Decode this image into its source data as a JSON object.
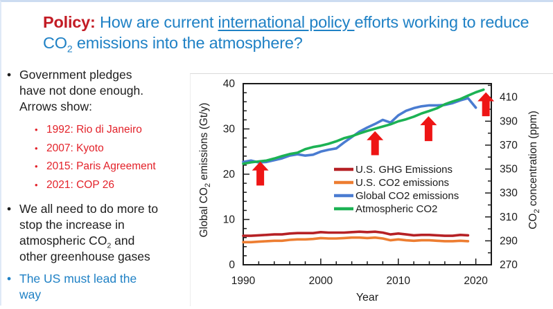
{
  "slide": {
    "bullet_char": "•",
    "colors": {
      "title_blue": "#1f81c5",
      "text_red": "#c31c25",
      "sub_red": "#e32129",
      "arrow_red": "#ee1515",
      "border_blue": "#ccdcf1"
    },
    "title": {
      "prefix": "Policy:",
      "seg1": " How are current ",
      "underlined": "international policy ",
      "seg2": "efforts working to reduce CO",
      "subscript": "2",
      "seg3": " emissions into the atmosphere?"
    },
    "bullets": {
      "b1": {
        "text": "Government pledges have not done enough. Arrows show:"
      },
      "sub": [
        "1992: Rio di Janeiro",
        "2007: Kyoto",
        "2015: Paris Agreement",
        "2021: COP 26"
      ],
      "b2": {
        "pre": "We all need to do more to stop the increase in atmospheric CO",
        "sub": "2",
        "post": " and other greenhouse gases"
      },
      "b3": {
        "text": "The US must lead the way"
      }
    }
  },
  "chart_data": {
    "type": "line",
    "title": "",
    "xlabel": "Year",
    "ylabel_left": {
      "pre": "Global CO",
      "sub": "2",
      "post": " emissions (Gt/y)"
    },
    "ylabel_right": {
      "pre": "CO",
      "sub": "2",
      "post": " concentration (ppm)"
    },
    "x_range": [
      1990,
      2022
    ],
    "x_major_ticks": [
      1990,
      2000,
      2010,
      2020
    ],
    "x_minor_step": 2,
    "y_left": {
      "range": [
        0,
        40
      ],
      "major_ticks": [
        0,
        10,
        20,
        30,
        40
      ],
      "minor_step": 2
    },
    "y_right": {
      "range": [
        270,
        421.4
      ],
      "major_ticks": [
        270,
        290,
        310,
        330,
        350,
        370,
        390,
        410
      ],
      "minor_step": 10
    },
    "grid": false,
    "legend_position": "inside-center",
    "series": [
      {
        "name": "U.S. GHG Emissions",
        "color": "#b62125",
        "axis": "left",
        "x_start": 1990,
        "values": [
          6.4,
          6.4,
          6.5,
          6.6,
          6.7,
          6.7,
          6.9,
          7.0,
          7.0,
          7.0,
          7.2,
          7.1,
          7.1,
          7.1,
          7.2,
          7.3,
          7.2,
          7.3,
          7.1,
          6.7,
          6.9,
          6.7,
          6.5,
          6.6,
          6.6,
          6.5,
          6.4,
          6.4,
          6.6,
          6.5
        ]
      },
      {
        "name": "U.S. CO2 emissions",
        "color": "#ed7d31",
        "axis": "left",
        "x_start": 1990,
        "values": [
          5.0,
          5.0,
          5.1,
          5.2,
          5.3,
          5.3,
          5.5,
          5.6,
          5.6,
          5.7,
          5.9,
          5.8,
          5.8,
          5.9,
          6.0,
          6.0,
          5.9,
          6.0,
          5.8,
          5.4,
          5.6,
          5.4,
          5.3,
          5.4,
          5.4,
          5.3,
          5.2,
          5.2,
          5.3,
          5.2
        ]
      },
      {
        "name": "Global CO2 emissions",
        "color": "#4a7cd1",
        "axis": "left",
        "x_start": 1990,
        "values": [
          22.7,
          23.0,
          22.6,
          22.7,
          23.1,
          23.5,
          24.1,
          24.4,
          24.1,
          24.3,
          25.0,
          25.4,
          25.7,
          27.0,
          28.2,
          29.4,
          30.3,
          31.1,
          32.0,
          31.4,
          33.0,
          34.0,
          34.6,
          35.0,
          35.2,
          35.2,
          35.3,
          35.7,
          36.3,
          36.8,
          34.7
        ]
      },
      {
        "name": "Atmospheric CO2",
        "color": "#1cb254",
        "axis": "right",
        "x_start": 1990,
        "values": [
          354.4,
          355.6,
          356.4,
          357.1,
          358.8,
          360.8,
          362.6,
          363.7,
          366.7,
          368.4,
          369.5,
          371.1,
          373.2,
          375.8,
          377.5,
          379.8,
          381.9,
          383.8,
          385.6,
          387.4,
          389.9,
          391.6,
          393.8,
          396.5,
          398.6,
          400.8,
          404.2,
          406.5,
          408.5,
          411.4,
          414.2,
          416.4
        ]
      }
    ],
    "arrows": [
      {
        "year": 1992.2,
        "tip_value": 22.8,
        "length": 5.3
      },
      {
        "year": 2007.0,
        "tip_value": 29.5,
        "length": 5.3
      },
      {
        "year": 2013.9,
        "tip_value": 32.8,
        "length": 5.5
      },
      {
        "year": 2021.3,
        "tip_value": 38.1,
        "length": 5.3
      }
    ],
    "arrow_color": "#ee1515"
  }
}
